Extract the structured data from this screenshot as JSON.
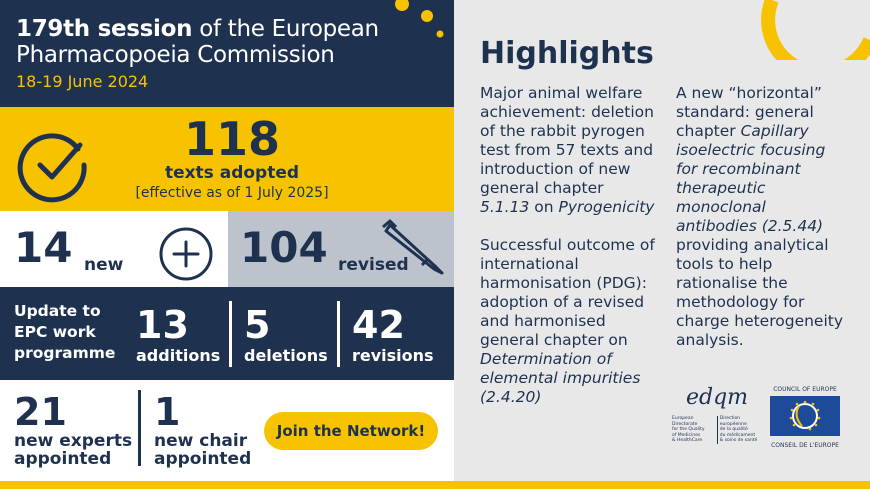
{
  "header": {
    "session_bold": "179th session",
    "session_rest": " of the European",
    "line2": "Pharmacopoeia Commission",
    "dates": "18-19 June 2024"
  },
  "adopted": {
    "count": "118",
    "label": "texts adopted",
    "effective": "[effective as of 1 July 2025]"
  },
  "new_texts": {
    "count": "14",
    "label": "new"
  },
  "revised_texts": {
    "count": "104",
    "label": "revised"
  },
  "work_programme": {
    "label_lines": [
      "Update to",
      "EPC work",
      "programme"
    ],
    "additions": {
      "count": "13",
      "label": "additions"
    },
    "deletions": {
      "count": "5",
      "label": "deletions"
    },
    "revisions": {
      "count": "42",
      "label": "revisions"
    }
  },
  "experts": {
    "count": "21",
    "label_lines": [
      "new experts",
      "appointed"
    ]
  },
  "chair": {
    "count": "1",
    "label_lines": [
      "new chair",
      "appointed"
    ]
  },
  "join_button": "Join the Network!",
  "highlights": {
    "title": "Highlights",
    "col1_p1_a": "Major animal welfare achievement: deletion of the rabbit pyrogen test from 57 texts and introduction of new general chapter ",
    "col1_p1_i1": "5.1.13",
    "col1_p1_b": " on ",
    "col1_p1_i2": "Pyrogenicity",
    "col1_p2_a": "Successful outcome of international harmonisation (PDG): adoption of a revised and harmonised general chapter on ",
    "col1_p2_i": "Determination of elemental impurities (2.4.20)",
    "col2_a": "A new “horizontal” standard: general chapter ",
    "col2_i": "Capillary isoelectric focusing for recombinant therapeutic monoclonal antibodies (2.5.44)",
    "col2_b": " providing analytical tools to help rationalise the methodology for charge heterogeneity analysis."
  },
  "logos": {
    "edqm": "edqm",
    "edqm_en": [
      "European Directorate",
      "for the Quality",
      "of Medicines",
      "& HealthCare"
    ],
    "edqm_fr": [
      "Direction européenne",
      "de la qualité",
      "du médicament",
      "& soins de santé"
    ],
    "coe_top": "COUNCIL OF EUROPE",
    "coe_bottom": "CONSEIL DE L'EUROPE"
  },
  "colors": {
    "navy": "#1e3250",
    "yellow": "#f7c300",
    "grey": "#bcc3cc"
  }
}
